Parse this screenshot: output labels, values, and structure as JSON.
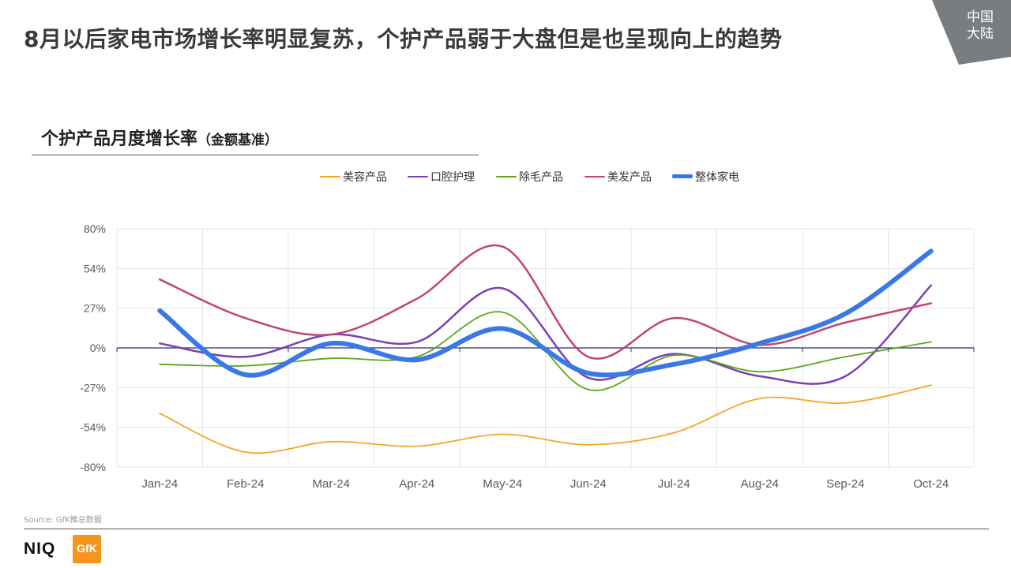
{
  "headline": "8月以后家电市场增长率明显复苏，个护产品弱于大盘但是也呈现向上的趋势",
  "region_badge": {
    "line1": "中国",
    "line2": "大陆",
    "color": "#7a7d80"
  },
  "chart_title": {
    "main": "个护产品月度增长率",
    "sub": "（金额基准）"
  },
  "source": "Source: GfK推总数据",
  "logos": {
    "niq": "NIQ",
    "gfk": "GfK",
    "gfk_color": "#f7941d"
  },
  "chart_data": {
    "type": "line",
    "categories": [
      "Jan-24",
      "Feb-24",
      "Mar-24",
      "Apr-24",
      "May-24",
      "Jun-24",
      "Jul-24",
      "Aug-24",
      "Sep-24",
      "Oct-24"
    ],
    "yticks": [
      "80%",
      "54%",
      "27%",
      "0%",
      "-27%",
      "-54%",
      "-80%"
    ],
    "ylim": [
      -80,
      80
    ],
    "unit": "%",
    "grid": true,
    "legend_position": "top",
    "series": [
      {
        "name": "美容产品",
        "color": "#f5a623",
        "width": 1.8,
        "values": [
          -44,
          -70,
          -63,
          -66,
          -58,
          -65,
          -57,
          -34,
          -37,
          -25
        ]
      },
      {
        "name": "口腔护理",
        "color": "#7b3fb5",
        "width": 2.5,
        "values": [
          3,
          -6,
          9,
          4,
          40,
          -20,
          -4,
          -19,
          -19,
          42
        ]
      },
      {
        "name": "除毛产品",
        "color": "#5ea619",
        "width": 1.8,
        "values": [
          -11,
          -12,
          -7,
          -6,
          24,
          -28,
          -5,
          -16,
          -6,
          4
        ]
      },
      {
        "name": "美发产品",
        "color": "#c4446f",
        "width": 2.5,
        "values": [
          46,
          20,
          9,
          33,
          68,
          -6,
          20,
          2,
          17,
          30
        ]
      },
      {
        "name": "整体家电",
        "color": "#3b78e7",
        "width": 6,
        "values": [
          25,
          -18,
          3,
          -8,
          13,
          -17,
          -11,
          3,
          23,
          65
        ]
      }
    ]
  }
}
